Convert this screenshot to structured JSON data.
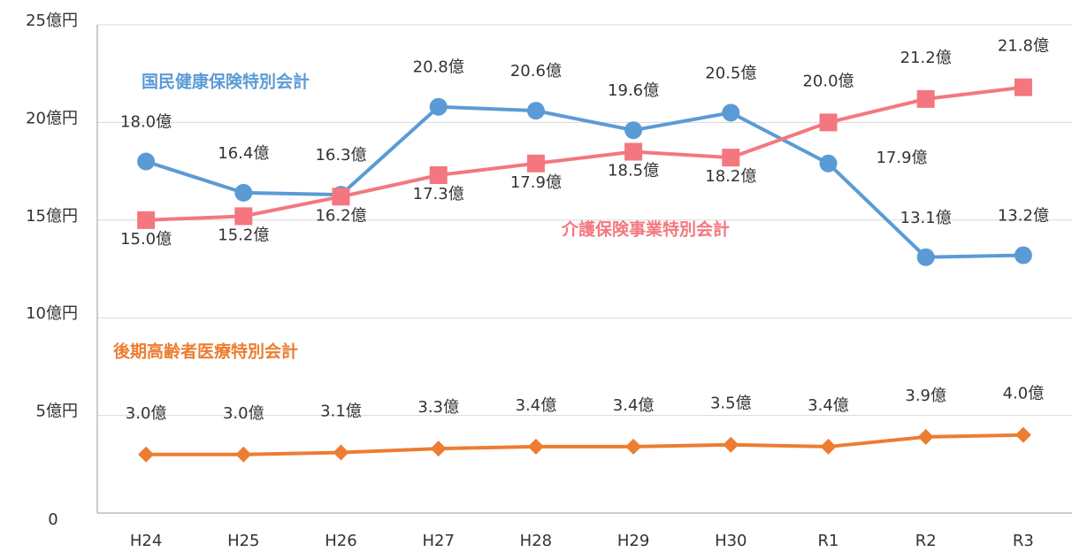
{
  "chart_data": {
    "type": "line",
    "categories": [
      "H24",
      "H25",
      "H26",
      "H27",
      "H28",
      "H29",
      "H30",
      "R1",
      "R2",
      "R3"
    ],
    "ylim": [
      0,
      25
    ],
    "yticks": [
      0,
      {
        "value": 5,
        "label": "5億円"
      },
      {
        "value": 10,
        "label": "10億円"
      },
      {
        "value": 15,
        "label": "15億円"
      },
      {
        "value": 20,
        "label": "20億円"
      },
      {
        "value": 25,
        "label": "25億円"
      }
    ],
    "grid": true,
    "series": [
      {
        "name": "国民健康保険特別会計",
        "color": "#5b9bd5",
        "marker": "circle",
        "values": [
          18.0,
          16.4,
          16.3,
          20.8,
          20.6,
          19.6,
          20.5,
          17.9,
          13.1,
          13.2
        ],
        "value_labels": [
          "18.0億",
          "16.4億",
          "16.3億",
          "20.8億",
          "20.6億",
          "19.6億",
          "20.5億",
          "17.9億",
          "13.1億",
          "13.2億"
        ]
      },
      {
        "name": "介護保険事業特別会計",
        "color": "#f4777f",
        "marker": "square",
        "values": [
          15.0,
          15.2,
          16.2,
          17.3,
          17.9,
          18.5,
          18.2,
          20.0,
          21.2,
          21.8
        ],
        "value_labels": [
          "15.0億",
          "15.2億",
          "16.2億",
          "17.3億",
          "17.9億",
          "18.5億",
          "18.2億",
          "20.0億",
          "21.2億",
          "21.8億"
        ]
      },
      {
        "name": "後期高齢者医療特別会計",
        "color": "#ed7d31",
        "marker": "diamond",
        "values": [
          3.0,
          3.0,
          3.1,
          3.3,
          3.4,
          3.4,
          3.5,
          3.4,
          3.9,
          4.0
        ],
        "value_labels": [
          "3.0億",
          "3.0億",
          "3.1億",
          "3.3億",
          "3.4億",
          "3.4億",
          "3.5億",
          "3.4億",
          "3.9億",
          "4.0億"
        ]
      }
    ]
  }
}
